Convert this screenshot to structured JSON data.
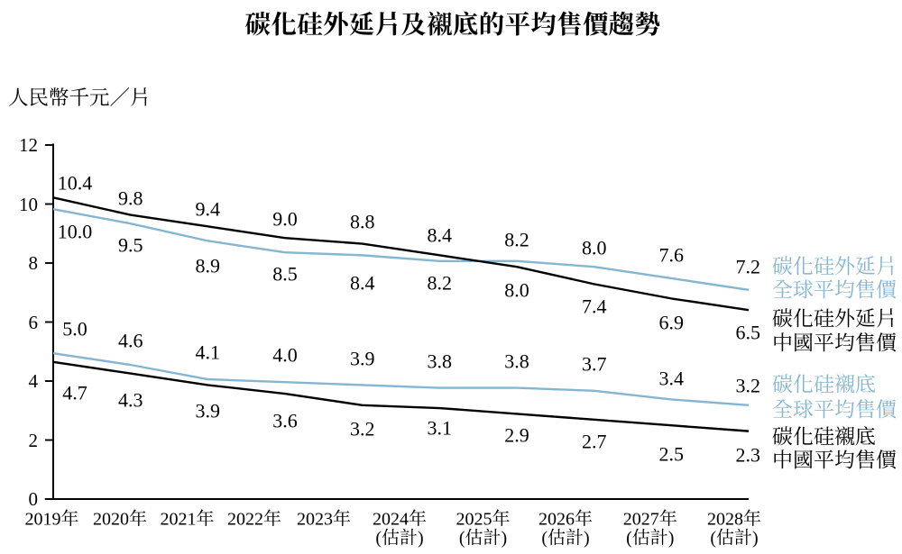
{
  "page": {
    "background": "#ffffff"
  },
  "chart_data": {
    "type": "line",
    "title": "碳化硅外延片及襯底的平均售價趨勢",
    "ylabel": "人民幣千元／片",
    "xlabel": "",
    "ylim": [
      0,
      12
    ],
    "yticks": [
      0,
      2,
      4,
      6,
      8,
      10,
      12
    ],
    "grid": false,
    "legend_position": "right",
    "categories": [
      "2019年",
      "2020年",
      "2021年",
      "2022年",
      "2023年",
      "2024年",
      "2025年",
      "2026年",
      "2027年",
      "2028年"
    ],
    "category_notes": [
      "",
      "",
      "",
      "",
      "",
      "(估計)",
      "(估計)",
      "(估計)",
      "(估計)",
      "(估計)"
    ],
    "series": [
      {
        "id": "epi-global",
        "name": "碳化硅外延片全球平均售價",
        "legend_lines": [
          "碳化硅外延片",
          "全球平均售價"
        ],
        "color": "#84b6d2",
        "values": [
          10.0,
          9.5,
          8.9,
          8.5,
          8.4,
          8.2,
          8.2,
          8.0,
          7.6,
          7.2
        ]
      },
      {
        "id": "epi-china",
        "name": "碳化硅外延片中國平均售價",
        "legend_lines": [
          "碳化硅外延片",
          "中國平均售價"
        ],
        "color": "#000000",
        "values": [
          10.4,
          9.8,
          9.4,
          9.0,
          8.8,
          8.4,
          8.0,
          7.4,
          6.9,
          6.5
        ]
      },
      {
        "id": "sub-global",
        "name": "碳化硅襯底全球平均售價",
        "legend_lines": [
          "碳化硅襯底",
          "全球平均售價"
        ],
        "color": "#84b6d2",
        "values": [
          5.0,
          4.6,
          4.1,
          4.0,
          3.9,
          3.8,
          3.8,
          3.7,
          3.4,
          3.2
        ]
      },
      {
        "id": "sub-china",
        "name": "碳化硅襯底中國平均售價",
        "legend_lines": [
          "碳化硅襯底",
          "中國平均售價"
        ],
        "color": "#000000",
        "values": [
          4.7,
          4.3,
          3.9,
          3.6,
          3.2,
          3.1,
          2.9,
          2.7,
          2.5,
          2.3
        ]
      }
    ]
  }
}
